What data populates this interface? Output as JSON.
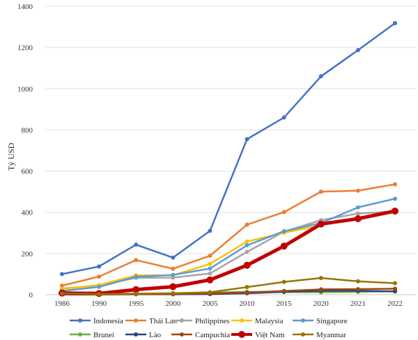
{
  "chart_data": {
    "type": "line",
    "title": "",
    "xlabel": "",
    "ylabel": "Tỷ USD",
    "ylim": [
      0,
      1400
    ],
    "yticks": [
      0,
      200,
      400,
      600,
      800,
      1000,
      1200,
      1400
    ],
    "grid": "horizontal",
    "legend_position": "bottom",
    "categories": [
      "1986",
      "1990",
      "1995",
      "2000",
      "2005",
      "2010",
      "2015",
      "2020",
      "2021",
      "2022"
    ],
    "series": [
      {
        "name": "Indonesia",
        "color": "#4472c4",
        "values": [
          100,
          137,
          243,
          180,
          310,
          755,
          860,
          1060,
          1187,
          1318
        ]
      },
      {
        "name": "Thái Lan",
        "color": "#ed7d31",
        "values": [
          44,
          88,
          168,
          126,
          189,
          340,
          401,
          500,
          505,
          536
        ]
      },
      {
        "name": "Philippines",
        "color": "#a5a5a5",
        "values": [
          30,
          45,
          82,
          83,
          103,
          208,
          306,
          362,
          394,
          404
        ]
      },
      {
        "name": "Malaysia",
        "color": "#ffc000",
        "values": [
          28,
          47,
          94,
          94,
          150,
          258,
          301,
          337,
          null,
          null
        ]
      },
      {
        "name": "Singapore",
        "color": "#5b9bd5",
        "values": [
          18,
          38,
          87,
          96,
          127,
          240,
          308,
          348,
          424,
          466
        ]
      },
      {
        "name": "Brunei",
        "color": "#70ad47",
        "values": [
          3,
          4,
          5,
          6,
          10,
          14,
          13,
          12,
          14,
          17
        ]
      },
      {
        "name": "Lào",
        "color": "#264478",
        "values": [
          1,
          1,
          2,
          2,
          3,
          7,
          14,
          19,
          19,
          16
        ]
      },
      {
        "name": "Campuchia",
        "color": "#9e480e",
        "values": [
          2,
          2,
          3,
          4,
          6,
          11,
          18,
          26,
          27,
          29
        ]
      },
      {
        "name": "Việt Nam",
        "color": "#c00000",
        "values": [
          8,
          6,
          25,
          39,
          72,
          143,
          236,
          343,
          369,
          406
        ]
      },
      {
        "name": "Myanmar",
        "color": "#997300",
        "values": [
          6,
          3,
          5,
          7,
          12,
          37,
          62,
          81,
          65,
          56
        ]
      }
    ]
  }
}
